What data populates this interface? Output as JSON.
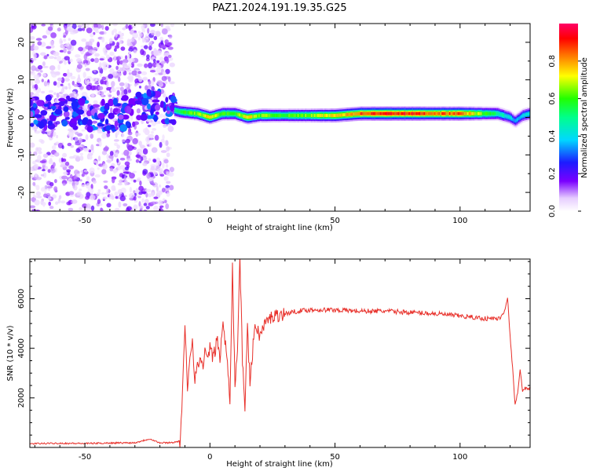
{
  "title": "PAZ1.2024.191.19.35.G25",
  "chart_data": [
    {
      "type": "heatmap",
      "xlabel": "Height of straight line (km)",
      "ylabel": "Frequency (Hz)",
      "xlim": [
        -72,
        128
      ],
      "ylim": [
        -25,
        25
      ],
      "x_ticks": [
        -50,
        0,
        50,
        100
      ],
      "y_ticks": [
        -20,
        -10,
        0,
        10,
        20
      ],
      "colorbar": {
        "label": "Normalized spectral amplitude",
        "ticks": [
          "0.0",
          "0.2",
          "0.4",
          "0.6",
          "0.8"
        ],
        "range": [
          0,
          1
        ]
      },
      "ridge": {
        "x": [
          -72,
          -60,
          -50,
          -40,
          -30,
          -25,
          -20,
          -15,
          -12,
          -5,
          0,
          5,
          10,
          15,
          20,
          30,
          40,
          50,
          60,
          70,
          80,
          90,
          100,
          110,
          115,
          120,
          122,
          125,
          128
        ],
        "frequency": [
          1,
          1.5,
          1,
          0,
          2,
          3,
          3,
          2,
          1.5,
          1,
          0,
          1,
          1,
          0,
          0.5,
          0.5,
          0.5,
          0.5,
          1,
          1,
          1,
          1,
          1,
          1,
          1,
          0,
          -1,
          0.5,
          1
        ],
        "amplitude": [
          0.3,
          0.35,
          0.3,
          0.3,
          0.45,
          0.5,
          0.5,
          0.45,
          0.55,
          0.65,
          0.75,
          0.6,
          0.6,
          0.75,
          0.65,
          0.6,
          0.65,
          0.75,
          0.85,
          0.9,
          0.9,
          0.85,
          0.85,
          0.6,
          0.5,
          0.4,
          0.35,
          0.4,
          0.4
        ]
      }
    },
    {
      "type": "line",
      "xlabel": "Height of straight line (km)",
      "ylabel": "SNR (10 * v/v)",
      "xlim": [
        -72,
        128
      ],
      "ylim": [
        0,
        7600
      ],
      "x_ticks": [
        -50,
        0,
        50,
        100
      ],
      "y_ticks": [
        2000,
        4000,
        6000
      ],
      "color": "#e8302a",
      "x": [
        -72,
        -60,
        -50,
        -40,
        -30,
        -24,
        -20,
        -15,
        -12,
        -11,
        -10,
        -9,
        -8,
        -7,
        -6,
        -5,
        -4,
        -3,
        -2,
        -1,
        0,
        1,
        2,
        3,
        4,
        5,
        6,
        7,
        8,
        9,
        10,
        11,
        12,
        13,
        14,
        15,
        16,
        18,
        20,
        22,
        25,
        30,
        35,
        40,
        50,
        60,
        70,
        80,
        90,
        100,
        110,
        116,
        118,
        119,
        120,
        121,
        122,
        123,
        124,
        125,
        126,
        128
      ],
      "y": [
        150,
        170,
        160,
        180,
        190,
        350,
        180,
        200,
        250,
        2000,
        4900,
        2300,
        3800,
        4300,
        2800,
        3200,
        3600,
        3300,
        3800,
        3500,
        4100,
        3600,
        3900,
        4400,
        3500,
        5000,
        4300,
        3500,
        2000,
        7300,
        2500,
        4000,
        7700,
        3500,
        1700,
        4800,
        2600,
        5000,
        4500,
        5000,
        5300,
        5400,
        5500,
        5550,
        5550,
        5500,
        5500,
        5450,
        5400,
        5300,
        5200,
        5200,
        5600,
        6050,
        4500,
        3200,
        1700,
        2200,
        3100,
        2300,
        2400,
        2350
      ]
    }
  ]
}
